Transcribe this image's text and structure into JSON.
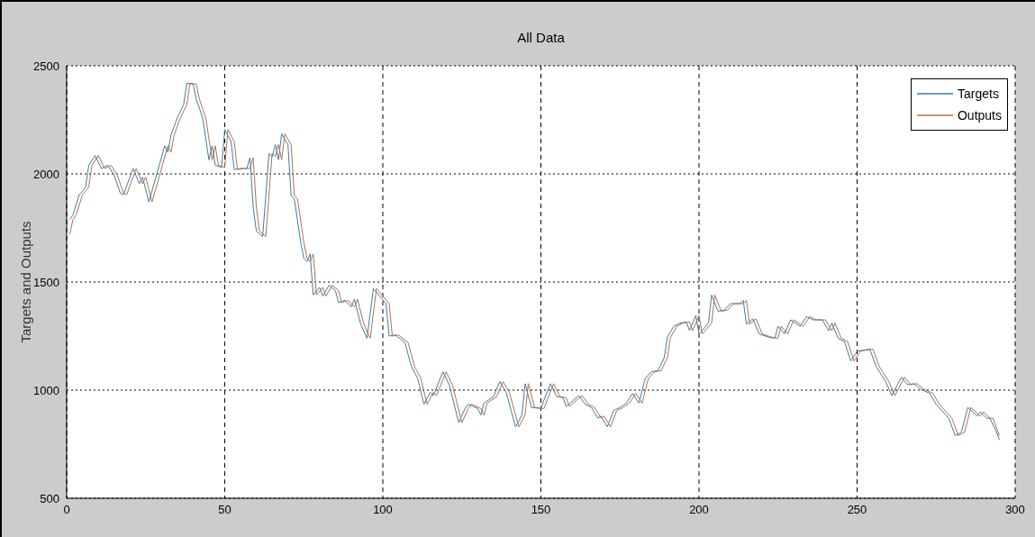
{
  "chart_data": {
    "type": "line",
    "title": "All Data",
    "ylabel": "Targets and Outputs",
    "xlim": [
      0,
      300
    ],
    "xticks": [
      0,
      50,
      100,
      150,
      200,
      250,
      300
    ],
    "ylim": [
      500,
      2500
    ],
    "yticks": [
      500,
      1000,
      1500,
      2000,
      2500
    ],
    "grid": true,
    "legend": "top right",
    "marker": "none",
    "series": [
      {
        "name": "Targets",
        "color": "#3d7ea6",
        "x": [
          1,
          2,
          4,
          5,
          6,
          7,
          9,
          11,
          13,
          15,
          17,
          18,
          21,
          23,
          24,
          26,
          29,
          31,
          32,
          33,
          35,
          37,
          38,
          40,
          41,
          43,
          45,
          46,
          47,
          49,
          50,
          52,
          53,
          55,
          57,
          58,
          59,
          60,
          62,
          64,
          65,
          66,
          67,
          68,
          70,
          71,
          72,
          74,
          75,
          76,
          77,
          78,
          80,
          81,
          83,
          85,
          86,
          88,
          90,
          91,
          93,
          95,
          97,
          99,
          101,
          102,
          104,
          107,
          109,
          111,
          113,
          115,
          116,
          119,
          121,
          124,
          126,
          127,
          130,
          131,
          132,
          135,
          137,
          139,
          142,
          144,
          145,
          147,
          150,
          151,
          153,
          155,
          157,
          158,
          160,
          162,
          164,
          166,
          168,
          169,
          171,
          173,
          175,
          177,
          179,
          181,
          183,
          185,
          187,
          189,
          190,
          192,
          194,
          196,
          197,
          199,
          200,
          203,
          204,
          206,
          208,
          210,
          213,
          214,
          215,
          217,
          219,
          222,
          224,
          225,
          227,
          229,
          232,
          234,
          236,
          239,
          241,
          242,
          244,
          246,
          248,
          250,
          252,
          254,
          256,
          259,
          261,
          264,
          266,
          268,
          270,
          273,
          275,
          279,
          281,
          283,
          285,
          288,
          289,
          291,
          292,
          294,
          295
        ],
        "values": [
          1790,
          1810,
          1905,
          1920,
          1940,
          2040,
          2085,
          2025,
          2040,
          1995,
          1910,
          1905,
          2025,
          1955,
          1985,
          1870,
          2025,
          2130,
          2100,
          2180,
          2260,
          2320,
          2420,
          2415,
          2345,
          2260,
          2065,
          2130,
          2040,
          2030,
          2205,
          2150,
          2020,
          2025,
          2025,
          2075,
          1845,
          1735,
          1710,
          2095,
          2080,
          2135,
          2065,
          2185,
          2135,
          1900,
          1885,
          1685,
          1610,
          1595,
          1630,
          1440,
          1475,
          1435,
          1485,
          1460,
          1405,
          1415,
          1385,
          1420,
          1305,
          1240,
          1470,
          1435,
          1400,
          1250,
          1255,
          1220,
          1110,
          1055,
          935,
          990,
          975,
          1085,
          1025,
          850,
          915,
          935,
          915,
          885,
          940,
          970,
          1040,
          990,
          830,
          885,
          1030,
          920,
          915,
          955,
          1030,
          970,
          965,
          925,
          950,
          975,
          935,
          920,
          870,
          880,
          830,
          905,
          920,
          940,
          985,
          940,
          1055,
          1085,
          1090,
          1150,
          1245,
          1295,
          1310,
          1315,
          1275,
          1345,
          1260,
          1310,
          1440,
          1365,
          1370,
          1400,
          1400,
          1415,
          1305,
          1330,
          1260,
          1245,
          1240,
          1295,
          1260,
          1325,
          1295,
          1340,
          1325,
          1325,
          1275,
          1310,
          1240,
          1225,
          1135,
          1180,
          1185,
          1190,
          1110,
          1040,
          975,
          1060,
          1025,
          1030,
          1005,
          985,
          935,
          870,
          790,
          805,
          920,
          880,
          900,
          870,
          870,
          810,
          770
        ]
      },
      {
        "name": "Outputs",
        "color": "#b3704c",
        "x": [
          1,
          2,
          3,
          5,
          6,
          7,
          8,
          10,
          12,
          14,
          16,
          18,
          19,
          22,
          24,
          25,
          27,
          30,
          32,
          33,
          34,
          36,
          38,
          39,
          41,
          42,
          44,
          46,
          47,
          48,
          50,
          51,
          53,
          54,
          56,
          58,
          59,
          60,
          61,
          63,
          65,
          66,
          67,
          68,
          69,
          71,
          72,
          73,
          75,
          76,
          77,
          78,
          79,
          81,
          82,
          84,
          86,
          87,
          89,
          91,
          92,
          94,
          96,
          98,
          100,
          102,
          103,
          105,
          108,
          110,
          112,
          114,
          116,
          117,
          120,
          122,
          125,
          127,
          128,
          131,
          132,
          133,
          136,
          138,
          140,
          143,
          145,
          146,
          148,
          151,
          152,
          154,
          156,
          158,
          159,
          161,
          163,
          165,
          167,
          169,
          170,
          172,
          174,
          176,
          178,
          180,
          182,
          184,
          186,
          188,
          190,
          191,
          193,
          195,
          197,
          198,
          200,
          201,
          204,
          205,
          207,
          209,
          211,
          214,
          215,
          216,
          218,
          220,
          223,
          225,
          226,
          228,
          230,
          233,
          235,
          237,
          240,
          242,
          243,
          245,
          247,
          249,
          251,
          253,
          255,
          257,
          260,
          262,
          265,
          267,
          269,
          271,
          274,
          276,
          280,
          282,
          284,
          286,
          289,
          290,
          292,
          293,
          295
        ],
        "values": [
          1720,
          1790,
          1810,
          1905,
          1920,
          1940,
          2040,
          2085,
          2025,
          2040,
          1995,
          1910,
          1905,
          2025,
          1955,
          1985,
          1870,
          2025,
          2130,
          2100,
          2180,
          2260,
          2320,
          2420,
          2415,
          2345,
          2260,
          2065,
          2130,
          2040,
          2030,
          2205,
          2150,
          2020,
          2025,
          2025,
          2075,
          1845,
          1735,
          1710,
          2095,
          2080,
          2135,
          2065,
          2185,
          2135,
          1900,
          1885,
          1685,
          1610,
          1595,
          1630,
          1440,
          1475,
          1435,
          1485,
          1460,
          1405,
          1415,
          1385,
          1420,
          1305,
          1240,
          1470,
          1435,
          1400,
          1250,
          1255,
          1220,
          1110,
          1055,
          935,
          990,
          975,
          1085,
          1025,
          850,
          915,
          935,
          915,
          885,
          940,
          970,
          1040,
          990,
          830,
          885,
          1030,
          920,
          915,
          955,
          1030,
          970,
          965,
          925,
          950,
          975,
          935,
          920,
          870,
          880,
          830,
          905,
          920,
          940,
          985,
          940,
          1055,
          1085,
          1090,
          1150,
          1245,
          1295,
          1310,
          1315,
          1275,
          1345,
          1260,
          1310,
          1440,
          1365,
          1370,
          1400,
          1400,
          1415,
          1305,
          1330,
          1260,
          1245,
          1240,
          1295,
          1260,
          1325,
          1295,
          1340,
          1325,
          1325,
          1275,
          1310,
          1240,
          1225,
          1135,
          1180,
          1185,
          1190,
          1110,
          1040,
          975,
          1060,
          1025,
          1030,
          1005,
          985,
          935,
          870,
          790,
          805,
          920,
          880,
          900,
          870,
          870,
          790
        ]
      }
    ]
  }
}
